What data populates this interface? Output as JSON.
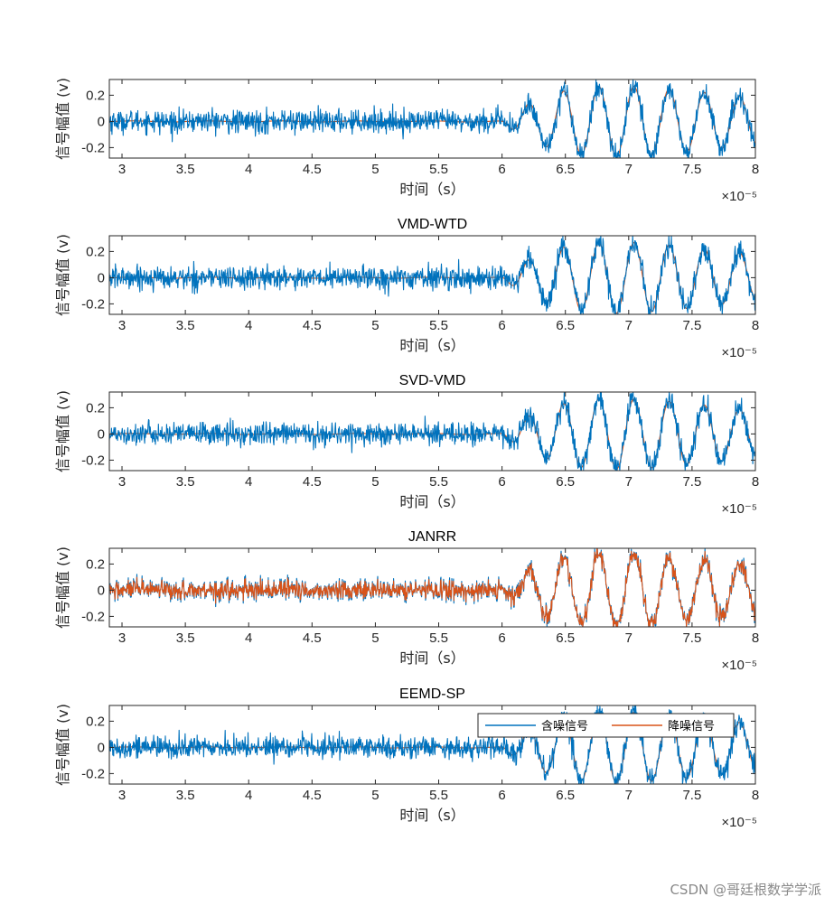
{
  "chart_data": [
    {
      "type": "line",
      "title": "",
      "xlabel": "时间（s）",
      "ylabel": "信号幅值 (v)",
      "x_exponent": "×10⁻⁵",
      "xlim": [
        2.9,
        8
      ],
      "ylim": [
        -0.28,
        0.32
      ],
      "xticks": [
        3,
        3.5,
        4,
        4.5,
        5,
        5.5,
        6,
        6.5,
        7,
        7.5,
        8
      ],
      "yticks": [
        -0.2,
        0,
        0.2
      ],
      "ytick_labels": [
        "-0.2",
        "0",
        "0.2"
      ],
      "draw_order": [
        "denoised",
        "noisy"
      ],
      "noise_level": 0.055,
      "denoised_residual": 0.0,
      "series": [
        {
          "name": "含噪信号",
          "color": "#0072BD"
        },
        {
          "name": "降噪信号",
          "color": "#D95319"
        }
      ]
    },
    {
      "type": "line",
      "title": "VMD-WTD",
      "xlabel": "时间（s）",
      "ylabel": "信号幅值 (v)",
      "x_exponent": "×10⁻⁵",
      "xlim": [
        2.9,
        8
      ],
      "ylim": [
        -0.28,
        0.32
      ],
      "xticks": [
        3,
        3.5,
        4,
        4.5,
        5,
        5.5,
        6,
        6.5,
        7,
        7.5,
        8
      ],
      "yticks": [
        -0.2,
        0,
        0.2
      ],
      "ytick_labels": [
        "-0.2",
        "0",
        "0.2"
      ],
      "draw_order": [
        "denoised",
        "noisy"
      ],
      "noise_level": 0.055,
      "denoised_residual": 0.0,
      "series": [
        {
          "name": "含噪信号",
          "color": "#0072BD"
        },
        {
          "name": "降噪信号",
          "color": "#D95319"
        }
      ]
    },
    {
      "type": "line",
      "title": "SVD-VMD",
      "xlabel": "时间（s）",
      "ylabel": "信号幅值 (v)",
      "x_exponent": "×10⁻⁵",
      "xlim": [
        2.9,
        8
      ],
      "ylim": [
        -0.28,
        0.32
      ],
      "xticks": [
        3,
        3.5,
        4,
        4.5,
        5,
        5.5,
        6,
        6.5,
        7,
        7.5,
        8
      ],
      "yticks": [
        -0.2,
        0,
        0.2
      ],
      "ytick_labels": [
        "-0.2",
        "0",
        "0.2"
      ],
      "draw_order": [
        "denoised",
        "noisy"
      ],
      "noise_level": 0.055,
      "denoised_residual": 0.0,
      "series": [
        {
          "name": "含噪信号",
          "color": "#0072BD"
        },
        {
          "name": "降噪信号",
          "color": "#D95319"
        }
      ]
    },
    {
      "type": "line",
      "title": "JANRR",
      "xlabel": "时间（s）",
      "ylabel": "信号幅值 (v)",
      "x_exponent": "×10⁻⁵",
      "xlim": [
        2.9,
        8
      ],
      "ylim": [
        -0.28,
        0.32
      ],
      "xticks": [
        3,
        3.5,
        4,
        4.5,
        5,
        5.5,
        6,
        6.5,
        7,
        7.5,
        8
      ],
      "yticks": [
        -0.2,
        0,
        0.2
      ],
      "ytick_labels": [
        "-0.2",
        "0",
        "0.2"
      ],
      "draw_order": [
        "noisy",
        "denoised"
      ],
      "noise_level": 0.055,
      "denoised_residual": 0.8,
      "series": [
        {
          "name": "含噪信号",
          "color": "#0072BD"
        },
        {
          "name": "降噪信号",
          "color": "#D95319"
        }
      ]
    },
    {
      "type": "line",
      "title": "EEMD-SP",
      "xlabel": "时间（s）",
      "ylabel": "信号幅值 (v)",
      "x_exponent": "×10⁻⁵",
      "xlim": [
        2.9,
        8
      ],
      "ylim": [
        -0.28,
        0.32
      ],
      "xticks": [
        3,
        3.5,
        4,
        4.5,
        5,
        5.5,
        6,
        6.5,
        7,
        7.5,
        8
      ],
      "yticks": [
        -0.2,
        0,
        0.2
      ],
      "ytick_labels": [
        "-0.2",
        "0",
        "0.2"
      ],
      "draw_order": [
        "denoised",
        "noisy"
      ],
      "noise_level": 0.055,
      "denoised_residual": 0.0,
      "legend": {
        "position": "top-right",
        "entries": [
          "含噪信号",
          "降噪信号"
        ]
      },
      "series": [
        {
          "name": "含噪信号",
          "color": "#0072BD"
        },
        {
          "name": "降噪信号",
          "color": "#D95319"
        }
      ]
    }
  ],
  "watermark": "CSDN @哥廷根数学学派"
}
